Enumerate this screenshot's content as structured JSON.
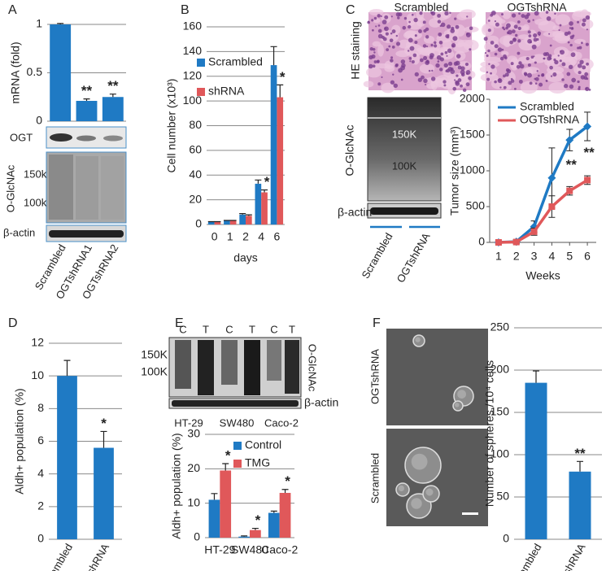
{
  "panel_labels": [
    "A",
    "B",
    "C",
    "D",
    "E",
    "F"
  ],
  "blot_a": {
    "ogt": "OGT",
    "o_glcnac": "O-GlcNAc",
    "markers": [
      "150k",
      "100k"
    ],
    "actin": "β-actin"
  },
  "panel_c": {
    "image_headers": [
      "Scrambled",
      "OGTshRNA"
    ],
    "stain": "HE staining",
    "markers": [
      "150K",
      "100K"
    ],
    "o_glcnac": "O-GlcNAc",
    "actin": "β-actin",
    "lanes": [
      "Scrambled",
      "OGTshRNA"
    ]
  },
  "blot_e": {
    "lanes": [
      "C",
      "T",
      "C",
      "T",
      "C",
      "T"
    ],
    "markers": [
      "150K",
      "100K"
    ],
    "o_glcnac": "O-GlcNAc",
    "actin": "β-actin",
    "cell_lines": [
      "HT-29",
      "SW480",
      "Caco-2"
    ]
  },
  "panel_f": {
    "image_labels": [
      "OGTshRNA",
      "Scrambled"
    ]
  },
  "chart_data": [
    {
      "type": "bar",
      "ylabel": "mRNA (fold)",
      "categories": [
        "Scrambled",
        "OGTshRNA1",
        "OGTshRNA2"
      ],
      "values": [
        1,
        0.21,
        0.25
      ],
      "errors": [
        0.01,
        0.02,
        0.03
      ],
      "annotations": [
        null,
        "**",
        "**"
      ],
      "color": "#1f7ac4",
      "ylim": [
        0,
        1
      ],
      "yticks": [
        0,
        0.5,
        1
      ],
      "grid": true
    },
    {
      "type": "bar",
      "ylabel": "Cell number (x10³)",
      "xlabel": "days",
      "categories": [
        "0",
        "1",
        "2",
        "4",
        "6"
      ],
      "series": [
        {
          "name": "Scrambled",
          "color": "#1f7ac4",
          "values": [
            2,
            3,
            8,
            33,
            129
          ],
          "errors": [
            0.3,
            0.3,
            0.8,
            3,
            15
          ],
          "annotations": [
            null,
            null,
            null,
            null,
            null
          ]
        },
        {
          "name": "shRNA",
          "color": "#e0585a",
          "values": [
            2,
            3,
            7,
            26,
            103
          ],
          "errors": [
            0.3,
            0.3,
            0.8,
            2,
            10
          ],
          "annotations": [
            null,
            null,
            null,
            "*",
            "*"
          ]
        }
      ],
      "ylim": [
        0,
        160
      ],
      "yticks": [
        0,
        20,
        40,
        60,
        80,
        100,
        120,
        140,
        160
      ],
      "grid": true
    },
    {
      "type": "line",
      "ylabel": "Tumor size (mm³)",
      "xlabel": "Weeks",
      "x": [
        1,
        2,
        3,
        4,
        5,
        6
      ],
      "series": [
        {
          "name": "Scrambled",
          "color": "#1f7ac4",
          "values": [
            0,
            10,
            220,
            900,
            1430,
            1620
          ],
          "errors": [
            20,
            30,
            80,
            420,
            150,
            200
          ]
        },
        {
          "name": "OGTshRNA",
          "color": "#e0585a",
          "values": [
            0,
            5,
            150,
            500,
            720,
            870
          ],
          "errors": [
            20,
            20,
            50,
            150,
            60,
            60
          ]
        }
      ],
      "annotations": [
        null,
        null,
        null,
        null,
        "**",
        "**"
      ],
      "xlim": [
        0.5,
        6.5
      ],
      "xticks": [
        1,
        2,
        3,
        4,
        5,
        6
      ],
      "ylim": [
        0,
        2000
      ],
      "yticks": [
        0,
        500,
        1000,
        1500,
        2000
      ],
      "grid": false
    },
    {
      "type": "bar",
      "ylabel": "Aldh+ population (%)",
      "categories": [
        "Scrambled",
        "OGTshRNA"
      ],
      "values": [
        10,
        5.6
      ],
      "errors": [
        0.95,
        1.0
      ],
      "annotations": [
        null,
        "*"
      ],
      "color": "#1f7ac4",
      "ylim": [
        0,
        12
      ],
      "yticks": [
        0,
        2,
        4,
        6,
        8,
        10,
        12
      ],
      "grid": true
    },
    {
      "type": "bar",
      "ylabel": "Aldh+ population (%)",
      "categories": [
        "HT-29",
        "SW480",
        "Caco-2"
      ],
      "series": [
        {
          "name": "Control",
          "color": "#1f7ac4",
          "values": [
            11,
            0.3,
            7.2
          ],
          "errors": [
            1.8,
            0.2,
            0.5
          ],
          "annotations": [
            null,
            null,
            null
          ]
        },
        {
          "name": "TMG",
          "color": "#e0585a",
          "values": [
            19.5,
            2.2,
            13
          ],
          "errors": [
            2,
            0.5,
            1
          ],
          "annotations": [
            "*",
            "*",
            "*"
          ]
        }
      ],
      "ylim": [
        0,
        30
      ],
      "yticks": [
        0,
        10,
        20,
        30
      ],
      "grid": true
    },
    {
      "type": "bar",
      "ylabel": "Number of spheres /10⁴ cells",
      "categories": [
        "Scrambled",
        "OGTshRNA"
      ],
      "values": [
        185,
        80
      ],
      "errors": [
        14,
        12
      ],
      "annotations": [
        null,
        "**"
      ],
      "color": "#1f7ac4",
      "ylim": [
        0,
        250
      ],
      "yticks": [
        0,
        50,
        100,
        150,
        200,
        250
      ],
      "grid": true
    }
  ]
}
